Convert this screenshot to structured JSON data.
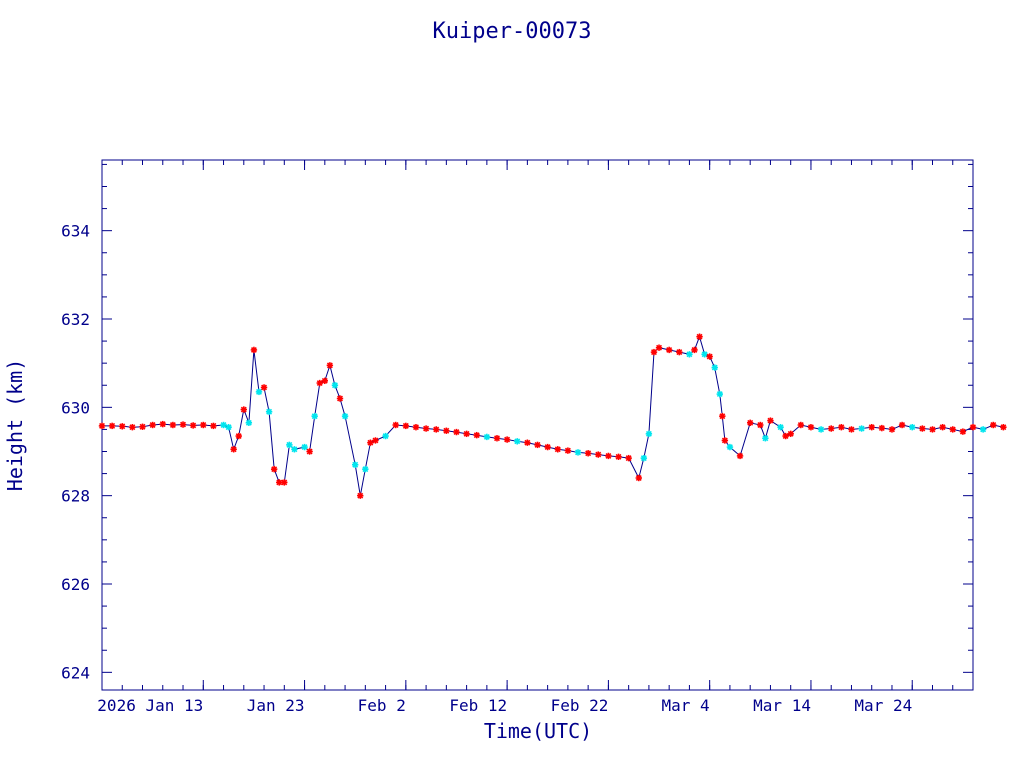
{
  "chart_data": {
    "type": "line",
    "title": "Kuiper-00073",
    "xlabel": "Time(UTC)",
    "ylabel": "Height (km)",
    "x_axis": {
      "start": "2026-01-03",
      "end": "2026-03-30",
      "ticks": [
        {
          "date": "2026-01-13",
          "label": "2026 Jan 13"
        },
        {
          "date": "2026-01-23",
          "label": "Jan 23"
        },
        {
          "date": "2026-02-02",
          "label": "Feb  2"
        },
        {
          "date": "2026-02-12",
          "label": "Feb 12"
        },
        {
          "date": "2026-02-22",
          "label": "Feb 22"
        },
        {
          "date": "2026-03-04",
          "label": "Mar  4"
        },
        {
          "date": "2026-03-14",
          "label": "Mar 14"
        },
        {
          "date": "2026-03-24",
          "label": "Mar 24"
        }
      ]
    },
    "ylim": [
      623.6,
      635.6
    ],
    "yticks": [
      624,
      626,
      628,
      630,
      632,
      634
    ],
    "grid": false,
    "colors": {
      "axis": "#00008b",
      "line": "#00008b",
      "marker_primary": "#ff0000",
      "marker_secondary": "#00e5ee"
    },
    "series": [
      {
        "points": [
          [
            "2026-01-03",
            629.58,
            "p"
          ],
          [
            "2026-01-04",
            629.58,
            "p"
          ],
          [
            "2026-01-05",
            629.57,
            "p"
          ],
          [
            "2026-01-06",
            629.55,
            "p"
          ],
          [
            "2026-01-07",
            629.56,
            "p"
          ],
          [
            "2026-01-08",
            629.6,
            "p"
          ],
          [
            "2026-01-09",
            629.62,
            "p"
          ],
          [
            "2026-01-10",
            629.6,
            "p"
          ],
          [
            "2026-01-11",
            629.61,
            "p"
          ],
          [
            "2026-01-12",
            629.59,
            "p"
          ],
          [
            "2026-01-13",
            629.6,
            "p"
          ],
          [
            "2026-01-14",
            629.58,
            "p"
          ],
          [
            "2026-01-15",
            629.6,
            "s"
          ],
          [
            "2026-01-15T12:00",
            629.55,
            "s"
          ],
          [
            "2026-01-16",
            629.05,
            "p"
          ],
          [
            "2026-01-16T12:00",
            629.35,
            "p"
          ],
          [
            "2026-01-17",
            629.95,
            "p"
          ],
          [
            "2026-01-17T12:00",
            629.65,
            "s"
          ],
          [
            "2026-01-18",
            631.3,
            "p"
          ],
          [
            "2026-01-18T12:00",
            630.35,
            "s"
          ],
          [
            "2026-01-19",
            630.45,
            "p"
          ],
          [
            "2026-01-19T12:00",
            629.9,
            "s"
          ],
          [
            "2026-01-20",
            628.6,
            "p"
          ],
          [
            "2026-01-20T12:00",
            628.3,
            "p"
          ],
          [
            "2026-01-21",
            628.3,
            "p"
          ],
          [
            "2026-01-21T12:00",
            629.15,
            "s"
          ],
          [
            "2026-01-22",
            629.05,
            "s"
          ],
          [
            "2026-01-23",
            629.1,
            "s"
          ],
          [
            "2026-01-23T12:00",
            629.0,
            "p"
          ],
          [
            "2026-01-24",
            629.8,
            "s"
          ],
          [
            "2026-01-24T12:00",
            630.55,
            "p"
          ],
          [
            "2026-01-25",
            630.6,
            "p"
          ],
          [
            "2026-01-25T12:00",
            630.95,
            "p"
          ],
          [
            "2026-01-26",
            630.5,
            "s"
          ],
          [
            "2026-01-26T12:00",
            630.2,
            "p"
          ],
          [
            "2026-01-27",
            629.8,
            "s"
          ],
          [
            "2026-01-28",
            628.7,
            "s"
          ],
          [
            "2026-01-28T12:00",
            628.0,
            "p"
          ],
          [
            "2026-01-29",
            628.6,
            "s"
          ],
          [
            "2026-01-29T12:00",
            629.2,
            "p"
          ],
          [
            "2026-01-30",
            629.25,
            "p"
          ],
          [
            "2026-01-31",
            629.35,
            "s"
          ],
          [
            "2026-02-01",
            629.6,
            "p"
          ],
          [
            "2026-02-02",
            629.58,
            "p"
          ],
          [
            "2026-02-03",
            629.55,
            "p"
          ],
          [
            "2026-02-04",
            629.52,
            "p"
          ],
          [
            "2026-02-05",
            629.5,
            "p"
          ],
          [
            "2026-02-06",
            629.47,
            "p"
          ],
          [
            "2026-02-07",
            629.44,
            "p"
          ],
          [
            "2026-02-08",
            629.4,
            "p"
          ],
          [
            "2026-02-09",
            629.37,
            "p"
          ],
          [
            "2026-02-10",
            629.33,
            "s"
          ],
          [
            "2026-02-11",
            629.3,
            "p"
          ],
          [
            "2026-02-12",
            629.27,
            "p"
          ],
          [
            "2026-02-13",
            629.23,
            "s"
          ],
          [
            "2026-02-14",
            629.2,
            "p"
          ],
          [
            "2026-02-15",
            629.15,
            "p"
          ],
          [
            "2026-02-16",
            629.1,
            "p"
          ],
          [
            "2026-02-17",
            629.05,
            "p"
          ],
          [
            "2026-02-18",
            629.02,
            "p"
          ],
          [
            "2026-02-19",
            628.98,
            "s"
          ],
          [
            "2026-02-20",
            628.96,
            "p"
          ],
          [
            "2026-02-21",
            628.93,
            "p"
          ],
          [
            "2026-02-22",
            628.9,
            "p"
          ],
          [
            "2026-02-23",
            628.88,
            "p"
          ],
          [
            "2026-02-24",
            628.85,
            "p"
          ],
          [
            "2026-02-25",
            628.4,
            "p"
          ],
          [
            "2026-02-25T12:00",
            628.85,
            "s"
          ],
          [
            "2026-02-26",
            629.4,
            "s"
          ],
          [
            "2026-02-26T12:00",
            631.25,
            "p"
          ],
          [
            "2026-02-27",
            631.35,
            "p"
          ],
          [
            "2026-02-28",
            631.3,
            "p"
          ],
          [
            "2026-03-01",
            631.25,
            "p"
          ],
          [
            "2026-03-02",
            631.2,
            "s"
          ],
          [
            "2026-03-02T12:00",
            631.3,
            "p"
          ],
          [
            "2026-03-03",
            631.6,
            "p"
          ],
          [
            "2026-03-03T12:00",
            631.2,
            "s"
          ],
          [
            "2026-03-04",
            631.15,
            "p"
          ],
          [
            "2026-03-04T12:00",
            630.9,
            "s"
          ],
          [
            "2026-03-05",
            630.3,
            "s"
          ],
          [
            "2026-03-05T06:00",
            629.8,
            "p"
          ],
          [
            "2026-03-05T12:00",
            629.25,
            "p"
          ],
          [
            "2026-03-06",
            629.1,
            "s"
          ],
          [
            "2026-03-07",
            628.9,
            "p"
          ],
          [
            "2026-03-08",
            629.65,
            "p"
          ],
          [
            "2026-03-09",
            629.6,
            "p"
          ],
          [
            "2026-03-09T12:00",
            629.3,
            "s"
          ],
          [
            "2026-03-10",
            629.7,
            "p"
          ],
          [
            "2026-03-11",
            629.55,
            "s"
          ],
          [
            "2026-03-11T12:00",
            629.35,
            "p"
          ],
          [
            "2026-03-12",
            629.4,
            "p"
          ],
          [
            "2026-03-13",
            629.6,
            "p"
          ],
          [
            "2026-03-14",
            629.55,
            "p"
          ],
          [
            "2026-03-15",
            629.5,
            "s"
          ],
          [
            "2026-03-16",
            629.52,
            "p"
          ],
          [
            "2026-03-17",
            629.55,
            "p"
          ],
          [
            "2026-03-18",
            629.5,
            "p"
          ],
          [
            "2026-03-19",
            629.52,
            "s"
          ],
          [
            "2026-03-20",
            629.55,
            "p"
          ],
          [
            "2026-03-21",
            629.53,
            "p"
          ],
          [
            "2026-03-22",
            629.5,
            "p"
          ],
          [
            "2026-03-23",
            629.6,
            "p"
          ],
          [
            "2026-03-24",
            629.55,
            "s"
          ],
          [
            "2026-03-25",
            629.52,
            "p"
          ],
          [
            "2026-03-26",
            629.5,
            "p"
          ],
          [
            "2026-03-27",
            629.55,
            "p"
          ],
          [
            "2026-03-28",
            629.5,
            "p"
          ],
          [
            "2026-03-29",
            629.45,
            "p"
          ],
          [
            "2026-03-30",
            629.55,
            "p"
          ],
          [
            "2026-03-31",
            629.5,
            "s"
          ],
          [
            "2026-04-01",
            629.6,
            "p"
          ],
          [
            "2026-04-02",
            629.55,
            "p"
          ]
        ]
      }
    ]
  }
}
